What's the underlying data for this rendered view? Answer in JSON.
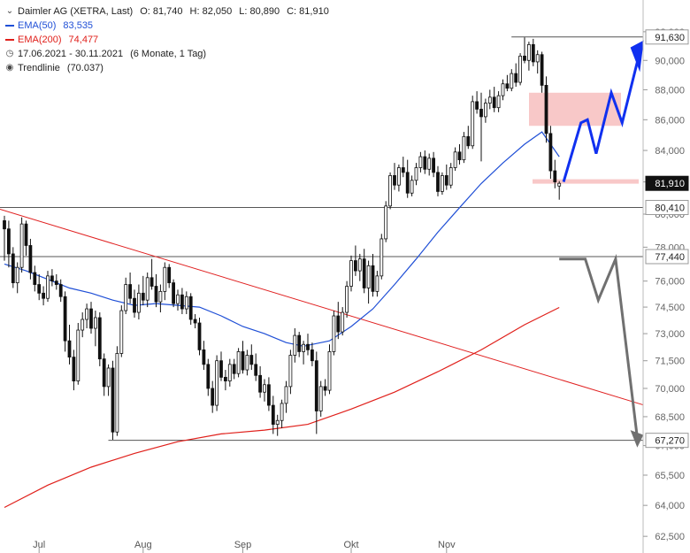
{
  "header": {
    "instrument": "Daimler AG (XETRA, Last)",
    "open": "O: 81,740",
    "high": "H: 82,050",
    "low": "L: 80,890",
    "close": "C: 81,910",
    "ema50_label": "EMA(50)",
    "ema50_value": "83,535",
    "ema200_label": "EMA(200)",
    "ema200_value": "74,477",
    "date_range": "17.06.2021 - 30.11.2021",
    "period": "(6 Monate, 1 Tag)",
    "trendline_label": "Trendlinie",
    "trendline_value": "(70.037)",
    "icons": [
      "chevron-down-icon",
      "clock-icon",
      "target-icon"
    ]
  },
  "colors": {
    "candle": "#111111",
    "ema50": "#1f4fd6",
    "ema200": "#e0201b",
    "trendline": "#e02020",
    "level_line": "#555555",
    "bullish_arrow": "#1030f0",
    "bearish_arrow": "#707070",
    "resistance_zone": "#f8c8c8",
    "price_tag": "#111111"
  },
  "chart_data": {
    "type": "candlestick",
    "x_labels": [
      "Jul",
      "Aug",
      "Sep",
      "Okt",
      "Nov"
    ],
    "y_ticks": [
      "62,500",
      "64,000",
      "65,500",
      "67,000",
      "68,500",
      "70,000",
      "71,500",
      "73,000",
      "74,500",
      "76,000",
      "78,000",
      "80,000",
      "82,000",
      "84,000",
      "86,000",
      "88,000",
      "90,000",
      "92,000"
    ],
    "y_tick_values": [
      62.5,
      64,
      65.5,
      67,
      68.5,
      70,
      71.5,
      73,
      74.5,
      76,
      78,
      80,
      82,
      84,
      86,
      88,
      90,
      92
    ],
    "y_scale": "log",
    "ylim": [
      62.0,
      93.5
    ],
    "price_tags": [
      {
        "label": "91,630",
        "value": 91.63,
        "dark": false
      },
      {
        "label": "81,910",
        "value": 81.91,
        "dark": true
      },
      {
        "label": "80,410",
        "value": 80.41,
        "dark": false
      },
      {
        "label": "77,440",
        "value": 77.44,
        "dark": false
      },
      {
        "label": "67,270",
        "value": 67.27,
        "dark": false
      }
    ],
    "horizontal_levels": [
      {
        "value": 91.63,
        "from_bar": 118
      },
      {
        "value": 80.41,
        "from_bar": 0
      },
      {
        "value": 77.44,
        "from_bar": 0
      },
      {
        "value": 67.27,
        "from_bar": 25
      }
    ],
    "trendline": {
      "from_bar": 0,
      "from_value": 80.3,
      "to_bar": 152,
      "to_value": 68.8
    },
    "resistance_zone": {
      "top": 87.8,
      "bottom": 85.6
    },
    "support_band": {
      "value": 82.0
    },
    "bullish_path": [
      [
        129,
        82.0
      ],
      [
        133,
        85.8
      ],
      [
        134.5,
        86.0
      ],
      [
        136.5,
        83.8
      ],
      [
        140,
        87.8
      ],
      [
        142.5,
        85.8
      ],
      [
        146.5,
        90.5
      ],
      [
        144.4,
        90.9
      ],
      [
        146.6,
        89.2
      ],
      [
        147.5,
        91.4
      ]
    ],
    "bearish_path": [
      [
        128,
        77.3
      ],
      [
        134,
        77.3
      ],
      [
        137,
        74.9
      ],
      [
        141,
        77.3
      ],
      [
        146,
        67.4
      ],
      [
        144.4,
        67.8
      ],
      [
        146.0,
        66.9
      ],
      [
        147.4,
        67.55
      ]
    ],
    "series": {
      "candles": [
        [
          79.6,
          79.9,
          77.2,
          79.1
        ],
        [
          79.1,
          79.6,
          76.8,
          77.6
        ],
        [
          77.6,
          78.0,
          75.6,
          75.9
        ],
        [
          75.9,
          77.1,
          75.3,
          76.8
        ],
        [
          76.8,
          79.8,
          76.5,
          79.4
        ],
        [
          79.4,
          79.6,
          77.5,
          78.1
        ],
        [
          78.1,
          78.5,
          76.1,
          76.5
        ],
        [
          76.5,
          76.9,
          75.4,
          75.8
        ],
        [
          75.8,
          76.4,
          74.9,
          75.3
        ],
        [
          75.3,
          75.7,
          74.6,
          75.0
        ],
        [
          75.0,
          76.6,
          74.8,
          76.3
        ],
        [
          76.3,
          76.7,
          75.7,
          76.0
        ],
        [
          76.0,
          76.4,
          75.5,
          75.8
        ],
        [
          75.8,
          76.1,
          74.8,
          75.1
        ],
        [
          75.1,
          75.4,
          72.0,
          72.6
        ],
        [
          72.6,
          73.5,
          71.3,
          71.7
        ],
        [
          71.7,
          72.1,
          69.9,
          70.4
        ],
        [
          70.4,
          73.6,
          70.2,
          73.2
        ],
        [
          73.2,
          74.2,
          72.8,
          73.8
        ],
        [
          73.8,
          74.7,
          73.3,
          74.4
        ],
        [
          74.4,
          74.8,
          73.0,
          73.3
        ],
        [
          73.3,
          74.3,
          72.3,
          73.9
        ],
        [
          73.9,
          74.2,
          71.2,
          71.6
        ],
        [
          71.6,
          71.9,
          69.6,
          70.1
        ],
        [
          70.1,
          71.3,
          69.6,
          71.1
        ],
        [
          71.1,
          71.5,
          67.3,
          67.7
        ],
        [
          67.7,
          72.3,
          67.5,
          71.9
        ],
        [
          71.9,
          74.6,
          71.7,
          74.3
        ],
        [
          74.3,
          76.2,
          74.1,
          75.8
        ],
        [
          75.8,
          76.5,
          74.7,
          75.0
        ],
        [
          75.0,
          75.5,
          73.9,
          74.2
        ],
        [
          74.2,
          75.8,
          73.8,
          75.3
        ],
        [
          75.3,
          76.3,
          74.6,
          74.9
        ],
        [
          74.9,
          76.5,
          74.5,
          76.2
        ],
        [
          76.2,
          77.3,
          75.5,
          75.7
        ],
        [
          75.7,
          76.4,
          74.5,
          74.8
        ],
        [
          74.8,
          75.8,
          74.2,
          75.4
        ],
        [
          75.4,
          77.1,
          74.9,
          76.8
        ],
        [
          76.8,
          77.0,
          75.6,
          75.9
        ],
        [
          75.9,
          76.1,
          74.5,
          74.7
        ],
        [
          74.7,
          75.5,
          74.3,
          75.2
        ],
        [
          75.2,
          75.6,
          74.1,
          74.4
        ],
        [
          74.4,
          75.4,
          74.1,
          75.1
        ],
        [
          75.1,
          75.3,
          73.5,
          73.8
        ],
        [
          73.8,
          74.1,
          73.3,
          73.6
        ],
        [
          73.6,
          73.9,
          71.8,
          72.1
        ],
        [
          72.1,
          72.6,
          71.0,
          71.3
        ],
        [
          71.3,
          71.6,
          69.6,
          70.0
        ],
        [
          70.0,
          70.4,
          68.7,
          69.1
        ],
        [
          69.1,
          71.8,
          68.8,
          71.5
        ],
        [
          71.5,
          72.0,
          70.4,
          70.6
        ],
        [
          70.6,
          71.0,
          69.9,
          70.4
        ],
        [
          70.4,
          71.6,
          70.1,
          71.3
        ],
        [
          71.3,
          71.6,
          70.5,
          70.8
        ],
        [
          70.8,
          72.2,
          70.6,
          72.0
        ],
        [
          72.0,
          72.6,
          70.8,
          71.0
        ],
        [
          71.0,
          72.1,
          70.7,
          71.8
        ],
        [
          71.8,
          72.4,
          71.0,
          71.3
        ],
        [
          71.3,
          71.9,
          70.4,
          70.7
        ],
        [
          70.7,
          71.2,
          69.5,
          69.8
        ],
        [
          69.8,
          70.5,
          69.3,
          70.2
        ],
        [
          70.2,
          70.6,
          68.8,
          69.1
        ],
        [
          69.1,
          69.6,
          67.6,
          68.1
        ],
        [
          68.1,
          68.6,
          67.5,
          68.3
        ],
        [
          68.3,
          69.4,
          67.9,
          69.2
        ],
        [
          69.2,
          70.4,
          68.7,
          70.1
        ],
        [
          70.1,
          72.1,
          69.7,
          71.8
        ],
        [
          71.8,
          73.3,
          71.4,
          72.9
        ],
        [
          72.9,
          73.1,
          71.7,
          72.0
        ],
        [
          72.0,
          72.6,
          71.3,
          72.4
        ],
        [
          72.4,
          73.0,
          71.8,
          72.1
        ],
        [
          72.1,
          72.5,
          71.2,
          71.5
        ],
        [
          71.5,
          72.0,
          67.6,
          68.8
        ],
        [
          68.8,
          70.4,
          68.5,
          70.1
        ],
        [
          70.1,
          70.5,
          69.6,
          69.9
        ],
        [
          69.9,
          72.4,
          69.7,
          72.0
        ],
        [
          72.0,
          74.3,
          71.8,
          74.0
        ],
        [
          74.0,
          74.8,
          72.7,
          73.1
        ],
        [
          73.1,
          74.5,
          72.9,
          74.2
        ],
        [
          74.2,
          76.0,
          73.9,
          75.7
        ],
        [
          75.7,
          77.5,
          75.4,
          77.2
        ],
        [
          77.2,
          78.1,
          76.3,
          76.6
        ],
        [
          76.6,
          77.6,
          76.0,
          77.3
        ],
        [
          77.3,
          77.9,
          75.3,
          75.6
        ],
        [
          75.6,
          77.2,
          74.7,
          76.9
        ],
        [
          76.9,
          77.6,
          75.1,
          75.4
        ],
        [
          75.4,
          76.6,
          75.1,
          76.3
        ],
        [
          76.3,
          78.8,
          76.1,
          78.5
        ],
        [
          78.5,
          80.8,
          78.3,
          80.5
        ],
        [
          80.5,
          82.6,
          80.3,
          82.4
        ],
        [
          82.4,
          83.2,
          81.5,
          81.8
        ],
        [
          81.8,
          83.1,
          81.4,
          82.9
        ],
        [
          82.9,
          83.6,
          82.3,
          82.6
        ],
        [
          82.6,
          83.4,
          81.0,
          81.3
        ],
        [
          81.3,
          82.4,
          81.1,
          82.1
        ],
        [
          82.1,
          83.2,
          81.8,
          82.9
        ],
        [
          82.9,
          83.9,
          82.6,
          83.6
        ],
        [
          83.6,
          84.0,
          82.5,
          82.8
        ],
        [
          82.8,
          83.8,
          82.4,
          83.5
        ],
        [
          83.5,
          83.9,
          82.3,
          82.6
        ],
        [
          82.6,
          83.0,
          81.1,
          81.4
        ],
        [
          81.4,
          82.6,
          81.2,
          82.4
        ],
        [
          82.4,
          83.1,
          81.5,
          81.8
        ],
        [
          81.8,
          83.2,
          81.6,
          82.9
        ],
        [
          82.9,
          84.2,
          82.7,
          83.9
        ],
        [
          83.9,
          84.4,
          83.1,
          83.4
        ],
        [
          83.4,
          85.2,
          83.2,
          84.9
        ],
        [
          84.9,
          85.6,
          84.1,
          84.3
        ],
        [
          84.3,
          87.6,
          84.1,
          87.2
        ],
        [
          87.2,
          87.9,
          86.4,
          86.7
        ],
        [
          86.7,
          87.8,
          83.3,
          86.2
        ],
        [
          86.2,
          87.4,
          85.8,
          87.1
        ],
        [
          87.1,
          88.0,
          86.7,
          87.5
        ],
        [
          87.5,
          88.2,
          86.5,
          86.8
        ],
        [
          86.8,
          87.9,
          86.5,
          87.6
        ],
        [
          87.6,
          88.7,
          87.3,
          88.4
        ],
        [
          88.4,
          89.0,
          87.9,
          88.1
        ],
        [
          88.1,
          89.4,
          87.9,
          89.1
        ],
        [
          89.1,
          89.8,
          88.2,
          88.5
        ],
        [
          88.5,
          90.5,
          88.3,
          90.3
        ],
        [
          90.3,
          91.6,
          89.8,
          90.0
        ],
        [
          90.0,
          91.3,
          89.3,
          91.1
        ],
        [
          91.1,
          91.5,
          89.6,
          89.9
        ],
        [
          89.9,
          90.7,
          89.1,
          90.4
        ],
        [
          90.4,
          90.6,
          87.8,
          88.3
        ],
        [
          88.3,
          88.9,
          84.5,
          85.1
        ],
        [
          85.1,
          85.6,
          82.2,
          82.7
        ],
        [
          82.7,
          83.4,
          81.6,
          82.0
        ],
        [
          81.74,
          82.05,
          80.89,
          81.91
        ]
      ],
      "ema50": [
        [
          0,
          77.0
        ],
        [
          5,
          76.6
        ],
        [
          10,
          76.1
        ],
        [
          15,
          75.6
        ],
        [
          20,
          75.3
        ],
        [
          25,
          74.9
        ],
        [
          30,
          74.6
        ],
        [
          35,
          74.7
        ],
        [
          40,
          74.6
        ],
        [
          45,
          74.5
        ],
        [
          50,
          74.0
        ],
        [
          55,
          73.4
        ],
        [
          60,
          73.0
        ],
        [
          65,
          72.5
        ],
        [
          69,
          72.3
        ],
        [
          75,
          72.6
        ],
        [
          80,
          73.4
        ],
        [
          85,
          74.4
        ],
        [
          90,
          75.8
        ],
        [
          95,
          77.3
        ],
        [
          100,
          78.9
        ],
        [
          105,
          80.4
        ],
        [
          110,
          81.9
        ],
        [
          115,
          83.2
        ],
        [
          120,
          84.4
        ],
        [
          124,
          85.2
        ],
        [
          126,
          84.4
        ],
        [
          128,
          83.6
        ]
      ],
      "ema200": [
        [
          0,
          63.9
        ],
        [
          10,
          65.0
        ],
        [
          20,
          65.9
        ],
        [
          30,
          66.6
        ],
        [
          40,
          67.2
        ],
        [
          50,
          67.6
        ],
        [
          60,
          67.8
        ],
        [
          70,
          68.1
        ],
        [
          80,
          68.9
        ],
        [
          90,
          69.8
        ],
        [
          100,
          70.9
        ],
        [
          110,
          72.1
        ],
        [
          120,
          73.5
        ],
        [
          128,
          74.48
        ]
      ]
    }
  }
}
